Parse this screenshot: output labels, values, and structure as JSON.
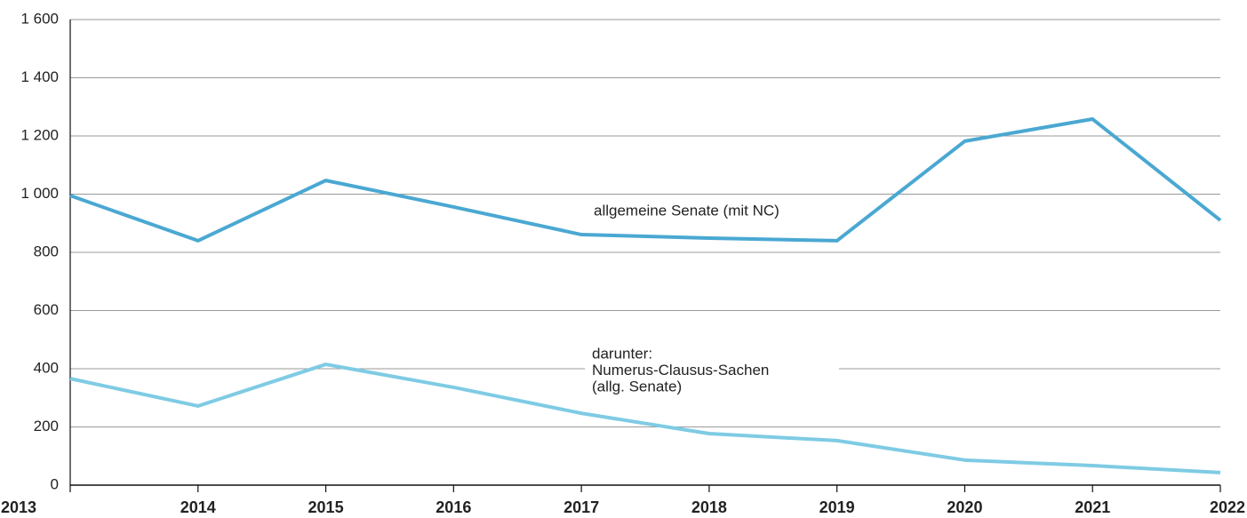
{
  "chart_data": {
    "type": "line",
    "x": [
      2013,
      2014,
      2015,
      2016,
      2017,
      2018,
      2019,
      2020,
      2021,
      2022
    ],
    "xlim": [
      2013,
      2022
    ],
    "xticks": [
      2013,
      2014,
      2015,
      2016,
      2017,
      2018,
      2019,
      2020,
      2021,
      2022
    ],
    "ylim": [
      0,
      1600
    ],
    "yticks": [
      0,
      200,
      400,
      600,
      800,
      {
        "value": 1000,
        "label": "1 000"
      },
      {
        "value": 1200,
        "label": "1 200"
      },
      {
        "value": 1400,
        "label": "1 400"
      },
      {
        "value": 1600,
        "label": "1 600"
      }
    ],
    "grid": true,
    "series": [
      {
        "name": [
          "allgemeine Senate (mit NC)"
        ],
        "color": "#4aa8d2",
        "values": [
          995,
          840,
          1047,
          956,
          861,
          849,
          840,
          1182,
          1258,
          910
        ]
      },
      {
        "name": [
          "darunter:",
          "Numerus-Clausus-Sachen",
          "(allg. Senate)"
        ],
        "color": "#7ecbe4",
        "values": [
          366,
          272,
          415,
          336,
          247,
          177,
          153,
          86,
          67,
          43
        ]
      }
    ]
  }
}
